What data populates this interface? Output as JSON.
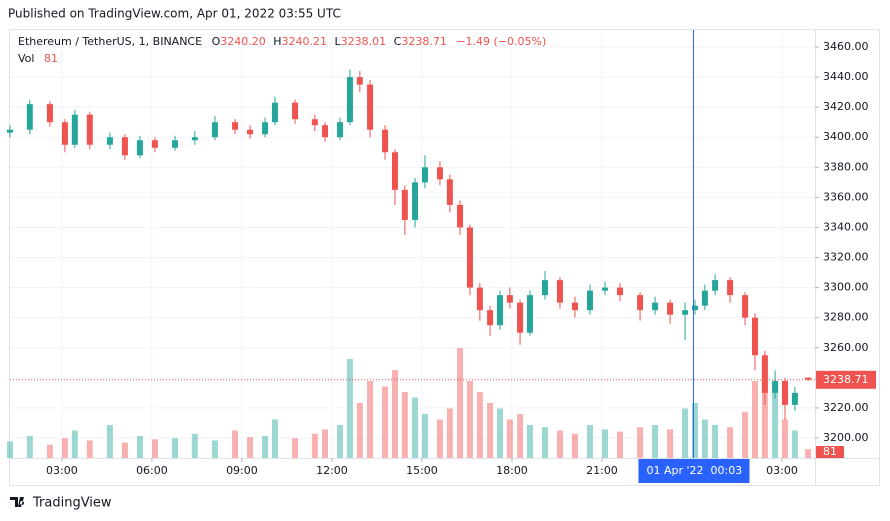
{
  "chart_data": {
    "type": "candlestick",
    "published": "Published on TradingView.com, Apr 01, 2022 03:55 UTC",
    "title": "Ethereum / TetherUS, 1, BINANCE",
    "ohlc_legend": [
      {
        "label": "O",
        "value": "3240.20"
      },
      {
        "label": "H",
        "value": "3240.21"
      },
      {
        "label": "L",
        "value": "3238.01"
      },
      {
        "label": "C",
        "value": "3238.71"
      }
    ],
    "change": "−1.49 (−0.05%)",
    "volume_label": "Vol",
    "x": [
      1.27,
      1.93,
      2.6,
      3.1,
      3.43,
      3.93,
      4.6,
      5.1,
      5.6,
      6.1,
      6.77,
      7.43,
      8.1,
      8.77,
      9.27,
      9.77,
      10.1,
      10.77,
      11.43,
      11.77,
      12.27,
      12.6,
      12.93,
      13.27,
      13.77,
      14.1,
      14.43,
      14.77,
      15.1,
      15.6,
      15.93,
      16.27,
      16.6,
      16.93,
      17.27,
      17.6,
      17.93,
      18.27,
      18.6,
      19.1,
      19.6,
      20.1,
      20.6,
      21.1,
      21.6,
      22.27,
      22.77,
      23.27,
      23.77,
      24.1,
      24.43,
      24.77,
      25.27,
      25.77,
      26.1,
      26.43,
      26.77,
      27.1,
      27.43,
      27.87
    ],
    "open": [
      3403,
      3405,
      3422,
      3410,
      3395,
      3415,
      3395,
      3400,
      3388,
      3398,
      3393,
      3398,
      3400,
      3410,
      3405,
      3402,
      3410,
      3423,
      3412,
      3408,
      3400,
      3410,
      3440,
      3435,
      3405,
      3390,
      3365,
      3345,
      3370,
      3380,
      3372,
      3355,
      3340,
      3300,
      3285,
      3275,
      3295,
      3290,
      3270,
      3295,
      3305,
      3290,
      3285,
      3298,
      3300,
      3295,
      3285,
      3290,
      3282,
      3285,
      3288,
      3298,
      3305,
      3295,
      3280,
      3255,
      3230,
      3238,
      3222,
      3240.2
    ],
    "high": [
      3408,
      3425,
      3424,
      3412,
      3418,
      3417,
      3403,
      3402,
      3401,
      3400,
      3401,
      3404,
      3414,
      3412,
      3408,
      3413,
      3427,
      3425,
      3415,
      3410,
      3413,
      3445,
      3444,
      3438,
      3408,
      3392,
      3368,
      3373,
      3388,
      3384,
      3375,
      3358,
      3342,
      3303,
      3288,
      3298,
      3300,
      3292,
      3298,
      3311,
      3307,
      3294,
      3302,
      3304,
      3303,
      3297,
      3294,
      3292,
      3290,
      3292,
      3302,
      3309,
      3307,
      3297,
      3283,
      3258,
      3245,
      3240,
      3234,
      3240.21
    ],
    "low": [
      3400,
      3402,
      3407,
      3390,
      3393,
      3392,
      3392,
      3385,
      3386,
      3390,
      3391,
      3395,
      3398,
      3402,
      3399,
      3400,
      3408,
      3409,
      3404,
      3397,
      3398,
      3408,
      3430,
      3400,
      3385,
      3355,
      3335,
      3340,
      3366,
      3368,
      3350,
      3335,
      3295,
      3278,
      3268,
      3272,
      3286,
      3262,
      3268,
      3292,
      3286,
      3280,
      3282,
      3295,
      3291,
      3278,
      3282,
      3276,
      3265,
      3282,
      3285,
      3295,
      3290,
      3275,
      3245,
      3222,
      3226,
      3212,
      3218,
      3238.01
    ],
    "close": [
      3405,
      3422,
      3410,
      3395,
      3415,
      3395,
      3400,
      3388,
      3398,
      3393,
      3398,
      3400,
      3410,
      3405,
      3402,
      3410,
      3423,
      3412,
      3408,
      3400,
      3410,
      3440,
      3435,
      3405,
      3390,
      3365,
      3345,
      3370,
      3380,
      3372,
      3355,
      3340,
      3300,
      3285,
      3275,
      3295,
      3290,
      3270,
      3295,
      3305,
      3290,
      3285,
      3298,
      3300,
      3295,
      3285,
      3290,
      3282,
      3285,
      3288,
      3298,
      3305,
      3295,
      3280,
      3255,
      3230,
      3238,
      3222,
      3230,
      3238.71
    ],
    "volume": [
      150,
      200,
      120,
      180,
      250,
      160,
      300,
      140,
      200,
      170,
      180,
      220,
      160,
      250,
      190,
      200,
      350,
      180,
      220,
      260,
      300,
      900,
      500,
      700,
      650,
      800,
      600,
      550,
      400,
      350,
      450,
      1000,
      700,
      600,
      500,
      450,
      350,
      400,
      300,
      280,
      250,
      220,
      300,
      260,
      240,
      280,
      300,
      260,
      450,
      500,
      350,
      300,
      280,
      420,
      700,
      600,
      650,
      350,
      250,
      81
    ],
    "up_color": "#26a69a",
    "down_color": "#ef5350",
    "xlim": [
      1.27,
      28.1
    ],
    "ylim": [
      3186.7,
      3471.3
    ],
    "yticks": [
      {
        "value": 3200,
        "label": "3200.00"
      },
      {
        "value": 3220,
        "label": "3220.00"
      },
      {
        "value": 3240,
        "label": "3240.00"
      },
      {
        "value": 3260,
        "label": "3260.00"
      },
      {
        "value": 3280,
        "label": "3280.00"
      },
      {
        "value": 3300,
        "label": "3300.00"
      },
      {
        "value": 3320,
        "label": "3320.00"
      },
      {
        "value": 3340,
        "label": "3340.00"
      },
      {
        "value": 3360,
        "label": "3360.00"
      },
      {
        "value": 3380,
        "label": "3380.00"
      },
      {
        "value": 3400,
        "label": "3400.00"
      },
      {
        "value": 3420,
        "label": "3420.00"
      },
      {
        "value": 3440,
        "label": "3440.00"
      },
      {
        "value": 3460,
        "label": "3460.00"
      }
    ],
    "xticks": [
      {
        "value": 3,
        "label": "03:00"
      },
      {
        "value": 6,
        "label": "06:00"
      },
      {
        "value": 9,
        "label": "09:00"
      },
      {
        "value": 12,
        "label": "12:00"
      },
      {
        "value": 15,
        "label": "15:00"
      },
      {
        "value": 18,
        "label": "18:00"
      },
      {
        "value": 21,
        "label": "21:00"
      },
      {
        "value": 27,
        "label": "03:00"
      }
    ],
    "grid": true,
    "crosshair": {
      "x": 24.05,
      "date_label": "01 Apr '22",
      "time_label": "00:03"
    }
  },
  "footer": "TradingView"
}
